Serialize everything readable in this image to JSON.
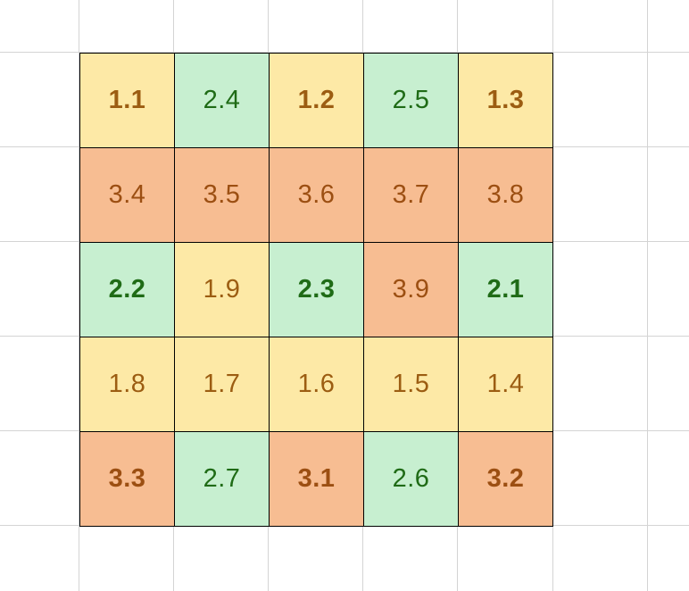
{
  "colors": {
    "yellow_fill": "#fde9a6",
    "green_fill": "#c7efd0",
    "orange_fill": "#f7bd92",
    "yellow_text": "#9c5d12",
    "green_text": "#1f6b16",
    "orange_text": "#9c4f12",
    "gridline": "#d4d4d4",
    "border": "#000000"
  },
  "grid": {
    "rows": [
      [
        {
          "value": "1.1",
          "fill": "yellow",
          "bold": true
        },
        {
          "value": "2.4",
          "fill": "green",
          "bold": false
        },
        {
          "value": "1.2",
          "fill": "yellow",
          "bold": true
        },
        {
          "value": "2.5",
          "fill": "green",
          "bold": false
        },
        {
          "value": "1.3",
          "fill": "yellow",
          "bold": true
        }
      ],
      [
        {
          "value": "3.4",
          "fill": "orange",
          "bold": false
        },
        {
          "value": "3.5",
          "fill": "orange",
          "bold": false
        },
        {
          "value": "3.6",
          "fill": "orange",
          "bold": false
        },
        {
          "value": "3.7",
          "fill": "orange",
          "bold": false
        },
        {
          "value": "3.8",
          "fill": "orange",
          "bold": false
        }
      ],
      [
        {
          "value": "2.2",
          "fill": "green",
          "bold": true
        },
        {
          "value": "1.9",
          "fill": "yellow",
          "bold": false
        },
        {
          "value": "2.3",
          "fill": "green",
          "bold": true
        },
        {
          "value": "3.9",
          "fill": "orange",
          "bold": false
        },
        {
          "value": "2.1",
          "fill": "green",
          "bold": true
        }
      ],
      [
        {
          "value": "1.8",
          "fill": "yellow",
          "bold": false
        },
        {
          "value": "1.7",
          "fill": "yellow",
          "bold": false
        },
        {
          "value": "1.6",
          "fill": "yellow",
          "bold": false
        },
        {
          "value": "1.5",
          "fill": "yellow",
          "bold": false
        },
        {
          "value": "1.4",
          "fill": "yellow",
          "bold": false
        }
      ],
      [
        {
          "value": "3.3",
          "fill": "orange",
          "bold": true
        },
        {
          "value": "2.7",
          "fill": "green",
          "bold": false
        },
        {
          "value": "3.1",
          "fill": "orange",
          "bold": true
        },
        {
          "value": "2.6",
          "fill": "green",
          "bold": false
        },
        {
          "value": "3.2",
          "fill": "orange",
          "bold": true
        }
      ]
    ]
  }
}
